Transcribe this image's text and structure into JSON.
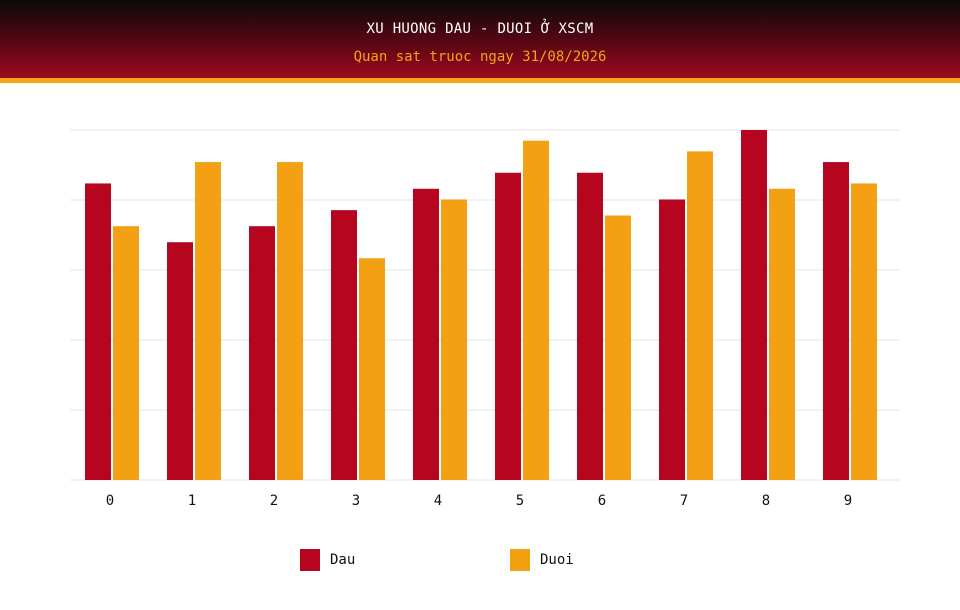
{
  "header": {
    "title": "XU HUONG DAU - DUOI Ở XSCM",
    "subtitle": "Quan sat truoc ngay 31/08/2026"
  },
  "colors": {
    "dau": "#b5051f",
    "duoi": "#f4a014",
    "grid": "#e6e6e6"
  },
  "chart_data": {
    "type": "bar",
    "categories": [
      "0",
      "1",
      "2",
      "3",
      "4",
      "5",
      "6",
      "7",
      "8",
      "9"
    ],
    "series": [
      {
        "name": "Dau",
        "values": [
          55.5,
          44.5,
          47.5,
          50.5,
          54.5,
          57.5,
          57.5,
          52.5,
          65.5,
          59.5
        ]
      },
      {
        "name": "Duoi",
        "values": [
          47.5,
          59.5,
          59.5,
          41.5,
          52.5,
          63.5,
          49.5,
          61.5,
          54.5,
          55.5
        ]
      }
    ],
    "ylim": [
      0,
      65.5
    ],
    "grid": true,
    "legend": "bottom"
  }
}
